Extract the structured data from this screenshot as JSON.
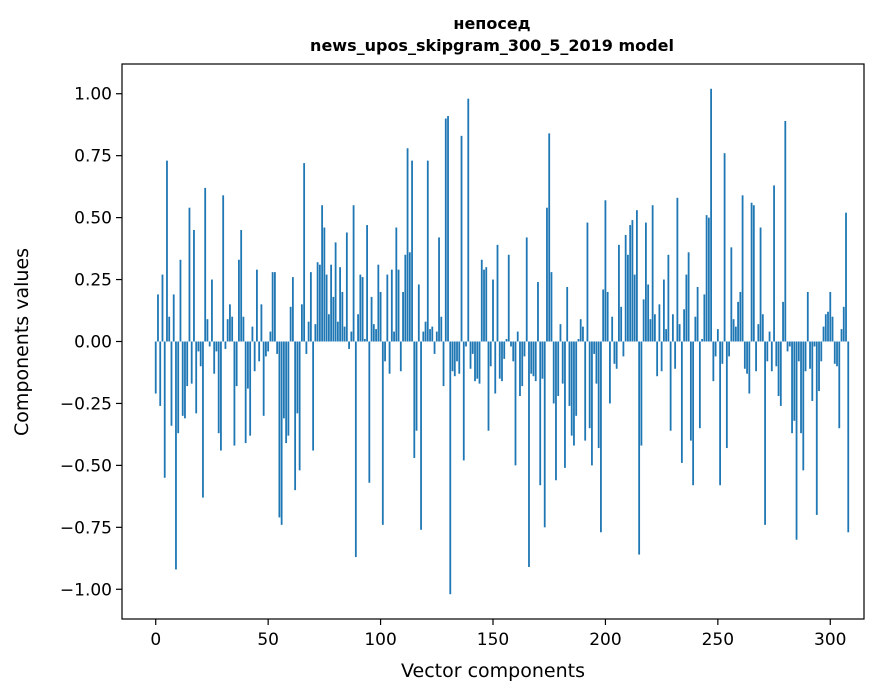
{
  "chart_data": {
    "type": "bar",
    "title_line1": "непосед",
    "title_line2": "news_upos_skipgram_300_5_2019 model",
    "xlabel": "Vector components",
    "ylabel": "Components values",
    "xlim": [
      -15,
      315
    ],
    "ylim": [
      -1.12,
      1.12
    ],
    "xticks": [
      0,
      50,
      100,
      150,
      200,
      250,
      300
    ],
    "xtick_labels": [
      "0",
      "50",
      "100",
      "150",
      "200",
      "250",
      "300"
    ],
    "yticks": [
      -1.0,
      -0.75,
      -0.5,
      -0.25,
      0.0,
      0.25,
      0.5,
      0.75,
      1.0
    ],
    "ytick_labels": [
      "−1.00",
      "−0.75",
      "−0.50",
      "−0.25",
      "0.00",
      "0.25",
      "0.50",
      "0.75",
      "1.00"
    ],
    "bar_color": "#1f77b4",
    "values": [
      -0.21,
      0.19,
      -0.26,
      0.27,
      -0.55,
      0.73,
      0.1,
      -0.34,
      0.19,
      -0.92,
      -0.37,
      0.33,
      -0.3,
      -0.31,
      -0.18,
      0.54,
      -0.17,
      0.45,
      -0.29,
      -0.04,
      -0.1,
      -0.63,
      0.62,
      0.09,
      -0.02,
      0.25,
      -0.13,
      -0.04,
      -0.37,
      -0.44,
      0.59,
      -0.03,
      0.09,
      0.15,
      0.1,
      -0.42,
      -0.18,
      0.33,
      0.45,
      0.1,
      -0.41,
      -0.19,
      -0.38,
      0.06,
      -0.12,
      0.29,
      -0.08,
      0.15,
      -0.3,
      -0.06,
      -0.04,
      0.04,
      0.28,
      0.28,
      -0.05,
      -0.71,
      -0.74,
      -0.31,
      -0.41,
      -0.38,
      0.14,
      0.26,
      -0.6,
      -0.29,
      -0.52,
      0.15,
      0.72,
      -0.05,
      0.08,
      0.28,
      -0.44,
      0.07,
      0.32,
      0.31,
      0.55,
      0.46,
      0.27,
      0.11,
      0.31,
      0.18,
      0.4,
      0.08,
      0.3,
      0.2,
      0.06,
      0.44,
      -0.03,
      0.04,
      0.55,
      -0.87,
      0.11,
      0.27,
      0.26,
      0.01,
      0.47,
      -0.57,
      0.18,
      0.07,
      0.05,
      0.31,
      0.2,
      -0.74,
      -0.08,
      0.27,
      -0.13,
      0.29,
      0.04,
      0.46,
      0.29,
      -0.12,
      0.2,
      0.35,
      0.78,
      0.36,
      0.73,
      -0.47,
      -0.36,
      0.23,
      -0.76,
      0.04,
      0.08,
      0.73,
      0.05,
      0.06,
      -0.05,
      0.04,
      0.42,
      0.1,
      -0.18,
      0.9,
      0.91,
      -1.02,
      -0.12,
      -0.14,
      -0.08,
      -0.13,
      0.83,
      -0.48,
      -0.02,
      0.98,
      -0.11,
      -0.05,
      -0.16,
      -0.15,
      -0.17,
      0.33,
      0.29,
      0.3,
      -0.36,
      -0.1,
      0.25,
      -0.21,
      0.39,
      -0.15,
      -0.16,
      -0.07,
      0.01,
      0.35,
      -0.02,
      -0.08,
      -0.5,
      0.04,
      -0.22,
      -0.18,
      -0.06,
      0.42,
      -0.91,
      -0.13,
      -0.14,
      -0.16,
      0.24,
      -0.58,
      -0.15,
      -0.75,
      0.54,
      0.84,
      0.28,
      -0.25,
      -0.56,
      -0.22,
      0.07,
      -0.17,
      -0.51,
      0.22,
      -0.26,
      -0.38,
      -0.42,
      -0.3,
      0.01,
      0.09,
      0.06,
      -0.4,
      0.48,
      -0.35,
      -0.5,
      -0.05,
      -0.17,
      -0.43,
      -0.77,
      0.21,
      0.57,
      0.2,
      -0.25,
      0.1,
      -0.09,
      -0.11,
      0.39,
      0.14,
      -0.06,
      0.43,
      0.35,
      0.47,
      0.49,
      0.27,
      0.53,
      -0.86,
      -0.42,
      0.17,
      0.48,
      0.23,
      0.09,
      0.55,
      0.11,
      -0.14,
      0.15,
      -0.12,
      0.25,
      0.05,
      0.35,
      -0.36,
      0.11,
      -0.11,
      0.58,
      0.07,
      -0.49,
      0.13,
      0.27,
      0.36,
      -0.4,
      -0.58,
      0.1,
      0.22,
      -0.35,
      0.01,
      0.19,
      0.51,
      0.5,
      1.02,
      -0.16,
      -0.06,
      0.05,
      -0.58,
      -0.09,
      0.76,
      -0.43,
      -0.06,
      0.38,
      0.09,
      0.06,
      0.16,
      0.2,
      0.59,
      -0.11,
      -0.13,
      -0.21,
      0.56,
      0.55,
      -0.12,
      0.07,
      0.46,
      0.11,
      -0.74,
      -0.08,
      0.04,
      -0.12,
      0.63,
      -0.1,
      -0.22,
      -0.26,
      0.16,
      0.89,
      -0.04,
      -0.02,
      -0.37,
      -0.32,
      -0.8,
      -0.08,
      -0.37,
      -0.52,
      -0.12,
      0.2,
      -0.11,
      -0.24,
      -0.02,
      -0.7,
      -0.2,
      -0.08,
      0.06,
      0.11,
      0.12,
      0.2,
      0.1,
      -0.09,
      -0.1,
      -0.35,
      0.05,
      0.14,
      0.52,
      -0.77
    ]
  }
}
